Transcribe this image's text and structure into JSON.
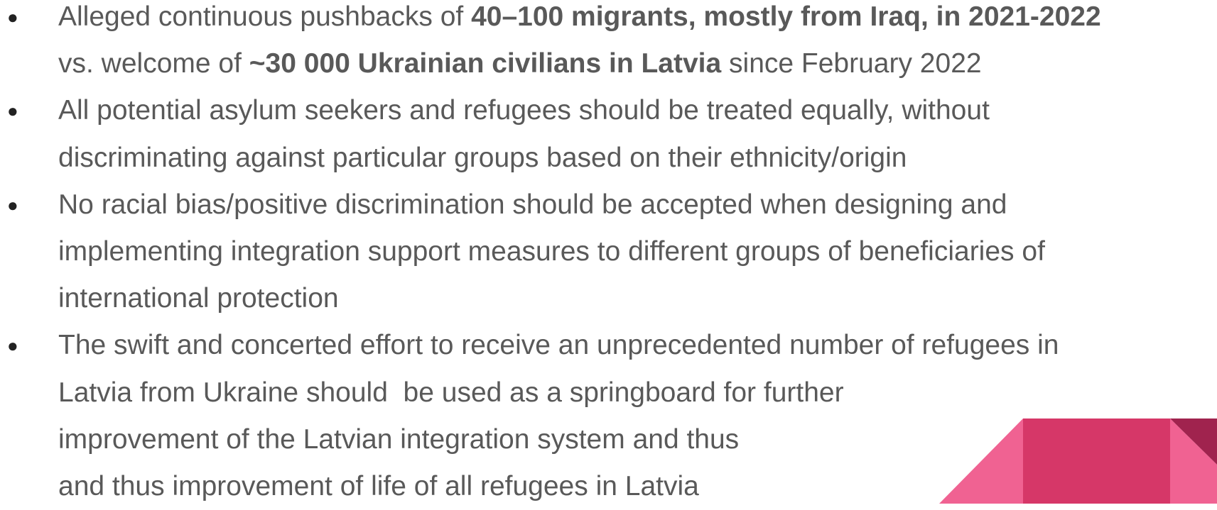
{
  "bullets": [
    {
      "lines": [
        [
          {
            "text": "Alleged continuous pushbacks of "
          },
          {
            "text": "40–100 migrants, mostly from Iraq, in 2021-2022",
            "bold": true
          }
        ],
        [
          {
            "text": "vs. welcome of "
          },
          {
            "text": "~30 000 Ukrainian civilians in Latvia",
            "bold": true
          },
          {
            "text": " since February 2022"
          }
        ]
      ]
    },
    {
      "lines": [
        [
          {
            "text": "All potential asylum seekers and refugees should be treated equally, without"
          }
        ],
        [
          {
            "text": "discriminating against particular groups based on their ethnicity/origin"
          }
        ]
      ]
    },
    {
      "lines": [
        [
          {
            "text": "No racial bias/positive discrimination should be accepted when designing and"
          }
        ],
        [
          {
            "text": "implementing integration support measures to different groups of beneficiaries of"
          }
        ],
        [
          {
            "text": "international protection"
          }
        ]
      ]
    },
    {
      "lines": [
        [
          {
            "text": "The swift and concerted effort to receive an unprecedented number of refugees in"
          }
        ],
        [
          {
            "text": "Latvia from Ukraine should  be used as a springboard for further"
          }
        ],
        [
          {
            "text": "improvement of the Latvian integration system and thus"
          }
        ],
        [
          {
            "text": "and thus improvement of life of all refugees in Latvia"
          }
        ]
      ]
    }
  ]
}
